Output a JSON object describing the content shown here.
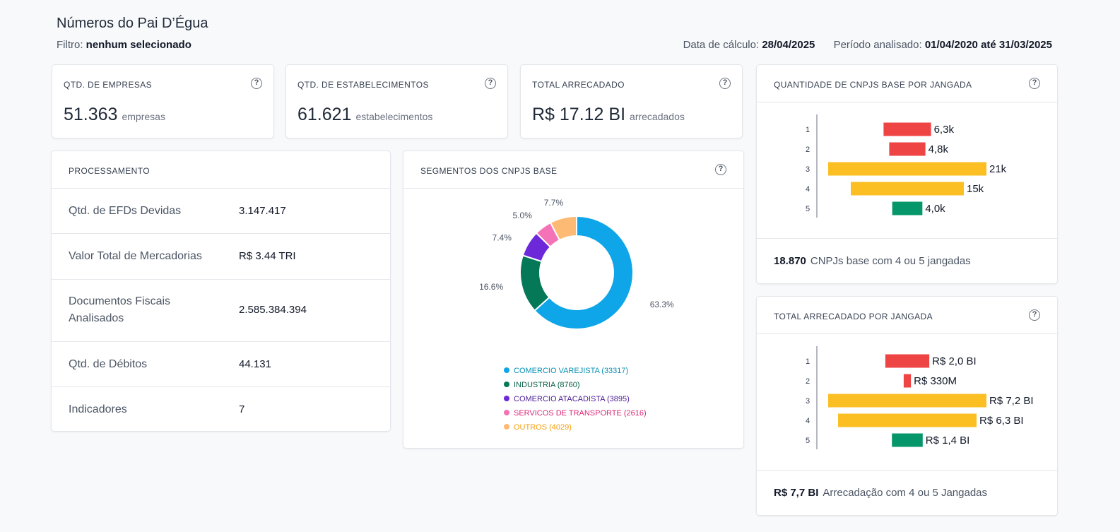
{
  "header": {
    "title": "Números do Pai D’Égua",
    "filter_label": "Filtro:",
    "filter_value": "nenhum selecionado",
    "calc_date_label": "Data de cálculo:",
    "calc_date_value": "28/04/2025",
    "period_label": "Período analisado:",
    "period_value": "01/04/2020 até 31/03/2025"
  },
  "kpis": [
    {
      "label": "QTD. DE EMPRESAS",
      "value": "51.363",
      "unit": "empresas"
    },
    {
      "label": "QTD. DE ESTABELECIMENTOS",
      "value": "61.621",
      "unit": "estabelecimentos"
    },
    {
      "label": "TOTAL ARRECADADO",
      "value": "R$ 17.12 BI",
      "unit": "arrecadados"
    }
  ],
  "processamento": {
    "title": "PROCESSAMENTO",
    "rows": [
      {
        "label": "Qtd. de EFDs Devidas",
        "value": "3.147.417"
      },
      {
        "label": "Valor Total de Mercadorias",
        "value": "R$ 3.44 TRI"
      },
      {
        "label": "Documentos Fiscais Analisados",
        "value": "2.585.384.394"
      },
      {
        "label": "Qtd. de Débitos",
        "value": "44.131"
      },
      {
        "label": "Indicadores",
        "value": "7"
      }
    ]
  },
  "segmentos": {
    "title": "SEGMENTOS DOS CNPJS BASE",
    "slice_labels": [
      "63.3%",
      "16.6%",
      "7.4%",
      "5.0%",
      "7.7%"
    ],
    "legend": [
      "COMERCIO VAREJISTA (33317)",
      "INDUSTRIA (8760)",
      "COMERCIO ATACADISTA (3895)",
      "SERVICOS DE TRANSPORTE (2616)",
      "OUTROS (4029)"
    ]
  },
  "jangada_qtd": {
    "title": "QUANTIDADE DE CNPJS BASE POR JANGADA",
    "footer_value": "18.870",
    "footer_text": "CNPJs base com 4 ou 5 jangadas",
    "labels": [
      "6,3k",
      "4,8k",
      "21k",
      "15k",
      "4,0k"
    ]
  },
  "jangada_total": {
    "title": "TOTAL ARRECADADO POR JANGADA",
    "footer_value": "R$ 7,7 BI",
    "footer_text": "Arrecadação com 4 ou 5 Jangadas",
    "labels": [
      "R$ 2,0 BI",
      "R$ 330M",
      "R$ 7,2 BI",
      "R$ 6,3 BI",
      "R$ 1,4 BI"
    ]
  },
  "help_icon": "question-circle-icon",
  "chart_data": [
    {
      "type": "pie",
      "categories": [
        "COMERCIO VAREJISTA",
        "INDUSTRIA",
        "COMERCIO ATACADISTA",
        "SERVICOS DE TRANSPORTE",
        "OUTROS"
      ],
      "values": [
        33317,
        8760,
        3895,
        2616,
        4029
      ],
      "colors": [
        "#0ea5e9",
        "#047857",
        "#6d28d9",
        "#f472b6",
        "#fdba74"
      ],
      "donut": true,
      "legend": "bottom"
    },
    {
      "type": "bar",
      "orientation": "horizontal",
      "categories": [
        "1",
        "2",
        "3",
        "4",
        "5"
      ],
      "values": [
        6300,
        4800,
        21000,
        15000,
        4000
      ],
      "colors": [
        "#ef4444",
        "#ef4444",
        "#fbbf24",
        "#fbbf24",
        "#059669"
      ],
      "centered": true
    },
    {
      "type": "bar",
      "orientation": "horizontal",
      "categories": [
        "1",
        "2",
        "3",
        "4",
        "5"
      ],
      "values": [
        2.0,
        0.33,
        7.2,
        6.3,
        1.4
      ],
      "unit": "BI",
      "colors": [
        "#ef4444",
        "#ef4444",
        "#fbbf24",
        "#fbbf24",
        "#059669"
      ],
      "centered": true
    }
  ]
}
